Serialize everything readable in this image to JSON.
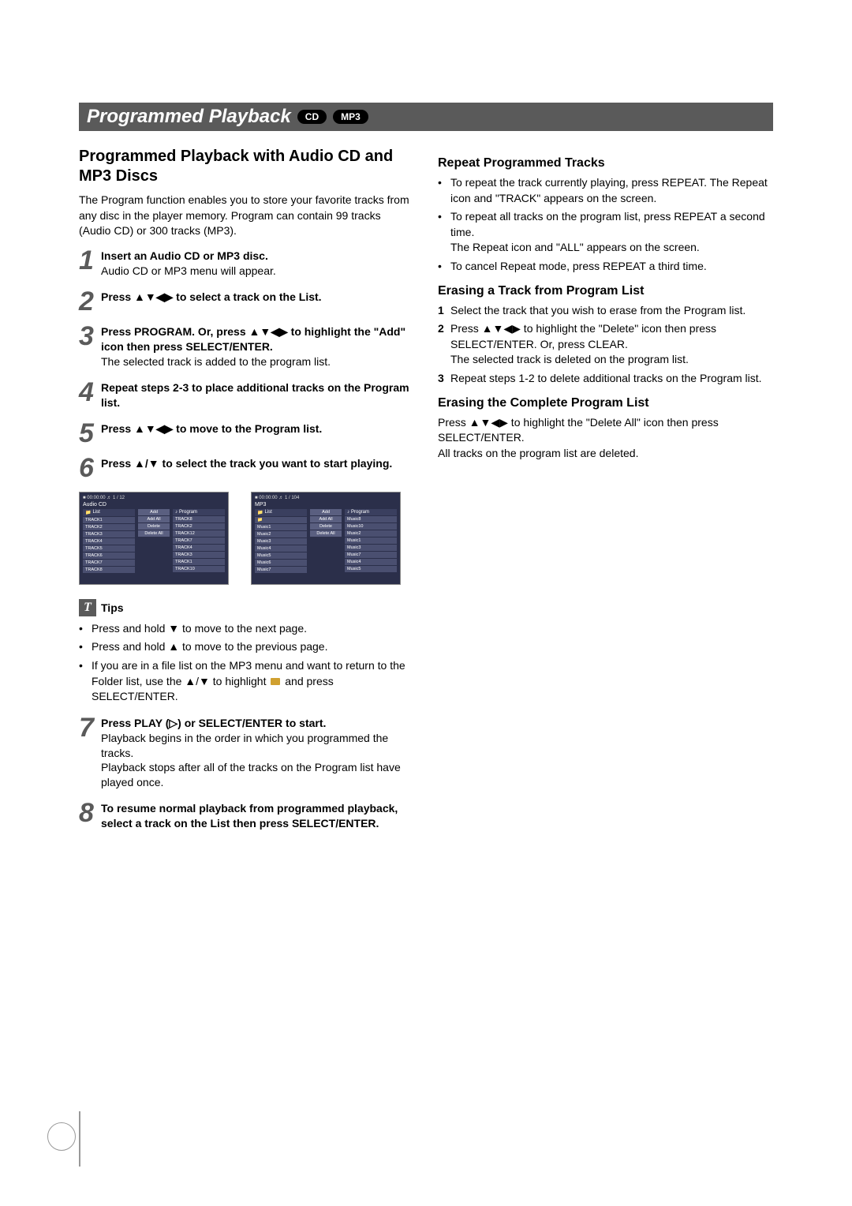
{
  "header": {
    "title": "Programmed Playback",
    "badges": [
      "CD",
      "MP3"
    ]
  },
  "left": {
    "title": "Programmed Playback with Audio CD and MP3 Discs",
    "intro": "The Program function enables you to store your favorite tracks from any disc in the player memory. Program can contain 99 tracks (Audio CD) or 300 tracks (MP3).",
    "steps": [
      {
        "num": "1",
        "bold": "Insert an Audio CD or MP3 disc.",
        "reg": "Audio CD or MP3 menu will appear."
      },
      {
        "num": "2",
        "bold": "Press ▲▼◀▶ to select a track on the List.",
        "reg": ""
      },
      {
        "num": "3",
        "bold": "Press PROGRAM. Or, press ▲▼◀▶ to highlight the \"Add\" icon then press SELECT/ENTER.",
        "reg": "The selected track is added to the program list."
      },
      {
        "num": "4",
        "bold": "Repeat steps 2-3 to place additional tracks on the Program list.",
        "reg": ""
      },
      {
        "num": "5",
        "bold": "Press ▲▼◀▶ to move to the Program list.",
        "reg": ""
      },
      {
        "num": "6",
        "bold": "Press ▲/▼ to select the track you want to start playing.",
        "reg": ""
      },
      {
        "num": "7",
        "bold": "Press PLAY (▷) or SELECT/ENTER to start.",
        "reg": "Playback begins in the order in which you programmed the tracks.\nPlayback stops after all of the tracks on the Program list have played once."
      },
      {
        "num": "8",
        "bold": "To resume normal playback from programmed playback, select a track on the List then press SELECT/ENTER.",
        "reg": ""
      }
    ],
    "tips_label": "Tips",
    "tips": [
      "Press and hold ▼ to move to the next page.",
      "Press and hold ▲ to move to the previous page.",
      "If you are in a file list on the MP3 menu and want to return to the Folder list, use the ▲/▼ to highlight  📁 and press SELECT/ENTER."
    ],
    "screen1": {
      "top": "■ 00:00:00   ♬ 1 / 12",
      "sub": "Audio CD",
      "list_hdr": "List",
      "prog_hdr": "Program",
      "list": [
        "TRACK1",
        "TRACK2",
        "TRACK3",
        "TRACK4",
        "TRACK5",
        "TRACK6",
        "TRACK7",
        "TRACK8"
      ],
      "mid": [
        "Add",
        "Add All",
        "Delete",
        "Delete All"
      ],
      "prog": [
        "TRACK8",
        "TRACK2",
        "TRACK12",
        "TRACK7",
        "TRACK4",
        "TRACK3",
        "TRACK1",
        "TRACK10"
      ]
    },
    "screen2": {
      "top": "■ 00:00:00   ♬ 1 / 104",
      "sub": "MP3",
      "list_hdr": "List",
      "prog_hdr": "Program",
      "list": [
        "📁",
        "Music1",
        "Music2",
        "Music3",
        "Music4",
        "Music5",
        "Music6",
        "Music7"
      ],
      "mid": [
        "Add",
        "Add All",
        "Delete",
        "Delete All"
      ],
      "prog": [
        "Music8",
        "Music10",
        "Music2",
        "Music1",
        "Music3",
        "Music7",
        "Music4",
        "Music5"
      ]
    }
  },
  "right": {
    "s1_title": "Repeat Programmed Tracks",
    "s1_bullets": [
      "To repeat the track currently playing, press REPEAT. The Repeat icon and \"TRACK\" appears on the screen.",
      "To repeat all tracks on the program list, press REPEAT a second time.\nThe Repeat icon and \"ALL\" appears on the screen.",
      "To cancel Repeat mode, press REPEAT a third time."
    ],
    "s2_title": "Erasing a Track from Program List",
    "s2_steps": [
      {
        "num": "1",
        "text": "Select the track that you wish to erase from the Program list."
      },
      {
        "num": "2",
        "text": "Press ▲▼◀▶ to highlight the \"Delete\" icon then press SELECT/ENTER. Or, press CLEAR.\nThe selected track is deleted on the program list."
      },
      {
        "num": "3",
        "text": "Repeat steps 1-2 to delete additional tracks on the Program list."
      }
    ],
    "s3_title": "Erasing the Complete Program List",
    "s3_body": "Press ▲▼◀▶ to highlight the \"Delete All\" icon then press SELECT/ENTER.\nAll tracks on the program list are deleted."
  }
}
